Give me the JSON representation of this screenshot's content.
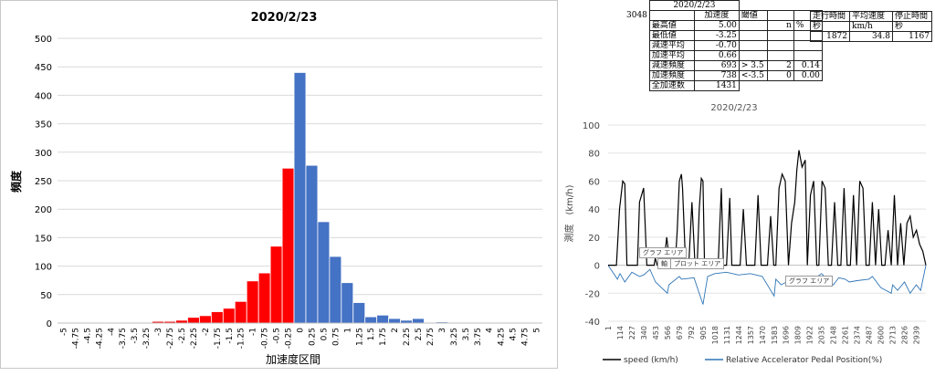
{
  "histogram": {
    "title": "2020/2/23",
    "xlabel": "加速度区間",
    "ylabel": "頻度",
    "colors": {
      "negative": "#ff0000",
      "positive": "#4472c4"
    }
  },
  "stats": {
    "date": "2020/2/23",
    "row_id": "3048",
    "headers": [
      "加速度",
      "閾値"
    ],
    "n_label": "n",
    "pct_label": "%",
    "rows": [
      {
        "label": "最高値",
        "value": "5.00"
      },
      {
        "label": "最低値",
        "value": "-3.25"
      },
      {
        "label": "減速平均",
        "value": "-0.70"
      },
      {
        "label": "加速平均",
        "value": "0.66"
      },
      {
        "label": "減速頻度",
        "value": "693",
        "thr": "> 3.5",
        "n": "2",
        "pct": "0.14"
      },
      {
        "label": "加速頻度",
        "value": "738",
        "thr": "<-3.5",
        "n": "0",
        "pct": "0.00"
      },
      {
        "label": "全加速数",
        "value": "1431"
      }
    ],
    "drive": {
      "headers": [
        "走行時間",
        "平均速度",
        "停止時間"
      ],
      "units": [
        "秒",
        "km/h",
        "秒"
      ],
      "values": [
        "1872",
        "34.8",
        "1167"
      ]
    }
  },
  "speed_chart": {
    "title": "2020/2/23",
    "ylabel": "測度　(km/h)",
    "legend": [
      "speed (km/h)",
      "Relative Accelerator Pedal Position(%)"
    ],
    "colors": {
      "speed": "#000000",
      "pedal": "#2e75b6"
    },
    "tooltips": [
      "グラフ エリア",
      "軸",
      "プロット エリア",
      "グラフ エリア"
    ]
  },
  "chart_data": [
    {
      "type": "bar",
      "title": "2020/2/23",
      "xlabel": "加速度区間",
      "ylabel": "頻度",
      "ylim": [
        0,
        500
      ],
      "yticks": [
        0,
        50,
        100,
        150,
        200,
        250,
        300,
        350,
        400,
        450,
        500
      ],
      "categories": [
        "-5",
        "-4.75",
        "-4.5",
        "-4.25",
        "-4",
        "-3.75",
        "-3.5",
        "-3.25",
        "-3",
        "-2.75",
        "-2.5",
        "-2.25",
        "-2",
        "-1.75",
        "-1.5",
        "-1.25",
        "-1",
        "-0.75",
        "-0.5",
        "-0.25",
        "0",
        "0.25",
        "0.5",
        "0.75",
        "1",
        "1.25",
        "1.5",
        "1.75",
        "2",
        "2.25",
        "2.5",
        "2.75",
        "3",
        "3.25",
        "3.5",
        "3.75",
        "4",
        "4.25",
        "4.5",
        "4.75",
        "5"
      ],
      "values": [
        0,
        0,
        0,
        0,
        0,
        0,
        0,
        1,
        3,
        3,
        5,
        10,
        13,
        20,
        26,
        38,
        74,
        88,
        135,
        272,
        440,
        277,
        178,
        117,
        71,
        36,
        11,
        14,
        8,
        5,
        8,
        0,
        2,
        0,
        0,
        0,
        0,
        0,
        0,
        0,
        1
      ],
      "grid": true,
      "legend": "none"
    },
    {
      "type": "line",
      "title": "2020/2/23",
      "ylabel": "測度　(km/h)",
      "ylim": [
        -40,
        100
      ],
      "yticks": [
        -40,
        -20,
        0,
        20,
        40,
        60,
        80,
        100
      ],
      "xlim": [
        1,
        3030
      ],
      "xticks": [
        1,
        114,
        227,
        340,
        453,
        566,
        679,
        792,
        905,
        1018,
        1131,
        1244,
        1357,
        1470,
        1583,
        1696,
        1809,
        1922,
        2035,
        2148,
        2261,
        2374,
        2487,
        2600,
        2713,
        2826,
        2939
      ],
      "legend": "bottom",
      "series": [
        {
          "name": "speed (km/h)",
          "x": [
            1,
            50,
            80,
            110,
            140,
            160,
            180,
            220,
            260,
            280,
            300,
            340,
            370,
            400,
            420,
            440,
            450,
            470,
            500,
            530,
            560,
            590,
            620,
            640,
            660,
            680,
            700,
            710,
            740,
            770,
            800,
            830,
            850,
            870,
            890,
            905,
            920,
            950,
            980,
            1000,
            1020,
            1050,
            1080,
            1100,
            1130,
            1160,
            1180,
            1200,
            1230,
            1260,
            1290,
            1320,
            1350,
            1380,
            1400,
            1430,
            1460,
            1490,
            1520,
            1550,
            1580,
            1600,
            1630,
            1660,
            1690,
            1720,
            1750,
            1780,
            1800,
            1820,
            1850,
            1880,
            1900,
            1930,
            1960,
            1990,
            2010,
            2040,
            2070,
            2100,
            2130,
            2160,
            2190,
            2220,
            2250,
            2280,
            2310,
            2340,
            2370,
            2400,
            2430,
            2460,
            2490,
            2520,
            2550,
            2580,
            2610,
            2640,
            2670,
            2700,
            2730,
            2760,
            2790,
            2820,
            2850,
            2880,
            2910,
            2940,
            2970,
            3000,
            3030
          ],
          "y": [
            0,
            0,
            0,
            40,
            60,
            58,
            0,
            0,
            0,
            0,
            45,
            55,
            0,
            0,
            0,
            0,
            5,
            0,
            0,
            0,
            20,
            0,
            0,
            0,
            25,
            60,
            65,
            55,
            0,
            0,
            45,
            0,
            0,
            40,
            62,
            60,
            0,
            0,
            0,
            0,
            0,
            0,
            55,
            0,
            0,
            48,
            0,
            0,
            0,
            0,
            40,
            0,
            0,
            0,
            0,
            50,
            0,
            0,
            0,
            35,
            0,
            0,
            55,
            65,
            60,
            0,
            30,
            45,
            68,
            82,
            70,
            75,
            0,
            50,
            60,
            0,
            0,
            60,
            55,
            0,
            0,
            45,
            0,
            0,
            55,
            0,
            0,
            50,
            0,
            60,
            55,
            0,
            0,
            45,
            0,
            40,
            0,
            0,
            25,
            0,
            50,
            0,
            30,
            0,
            30,
            35,
            20,
            25,
            15,
            10,
            0
          ]
        },
        {
          "name": "Relative Accelerator Pedal Position(%)",
          "x": [
            1,
            90,
            114,
            160,
            227,
            300,
            340,
            400,
            453,
            566,
            580,
            680,
            700,
            820,
            905,
            950,
            1018,
            1131,
            1244,
            1357,
            1470,
            1583,
            1600,
            1650,
            1700,
            1809,
            1850,
            1922,
            2035,
            2148,
            2200,
            2261,
            2300,
            2374,
            2487,
            2520,
            2600,
            2700,
            2713,
            2760,
            2826,
            2880,
            2939,
            2980,
            3030
          ],
          "y": [
            0,
            -10,
            -6,
            -12,
            -5,
            -8,
            -7,
            -3,
            -12,
            -20,
            -14,
            -8,
            -10,
            -9,
            -28,
            -8,
            -6,
            -5,
            -7,
            -6,
            -8,
            -22,
            -10,
            -14,
            -12,
            -8,
            -10,
            -12,
            -6,
            -14,
            -9,
            -10,
            -12,
            -11,
            -10,
            -8,
            -16,
            -20,
            -14,
            -18,
            -12,
            -20,
            -14,
            -18,
            0
          ]
        }
      ]
    }
  ]
}
